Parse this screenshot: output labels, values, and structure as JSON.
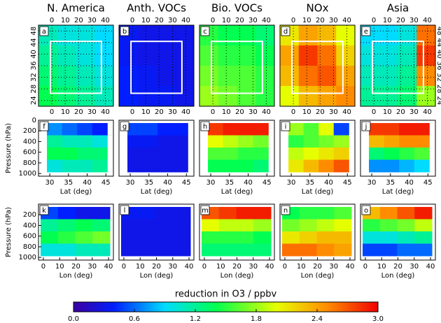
{
  "chart_data": [
    {
      "type": "map",
      "label": "a",
      "title": "N. America",
      "xlim": [
        -10,
        46
      ],
      "ylim": [
        22,
        50
      ],
      "xticks": [
        0,
        10,
        20,
        30,
        40
      ],
      "yticks": [
        24,
        28,
        32,
        36,
        40,
        44,
        48
      ],
      "values": [
        [
          1.1,
          1.0,
          1.0,
          0.9
        ],
        [
          1.2,
          1.1,
          1.0,
          0.9
        ],
        [
          1.3,
          1.2,
          1.1,
          1.0
        ],
        [
          1.4,
          1.3,
          1.2,
          1.1
        ]
      ]
    },
    {
      "type": "map",
      "label": "b",
      "title": "Anth. VOCs",
      "xlim": [
        -10,
        46
      ],
      "ylim": [
        22,
        50
      ],
      "xticks": [
        0,
        10,
        20,
        30,
        40
      ],
      "values": [
        [
          0.35,
          0.3,
          0.3,
          0.3
        ],
        [
          0.35,
          0.3,
          0.3,
          0.3
        ],
        [
          0.4,
          0.35,
          0.3,
          0.3
        ],
        [
          0.4,
          0.35,
          0.35,
          0.3
        ]
      ]
    },
    {
      "type": "map",
      "label": "c",
      "title": "Bio. VOCs",
      "xlim": [
        -10,
        46
      ],
      "ylim": [
        22,
        50
      ],
      "xticks": [
        0,
        10,
        20,
        30,
        40
      ],
      "values": [
        [
          1.5,
          1.4,
          1.4,
          1.3
        ],
        [
          1.6,
          1.5,
          1.5,
          1.4
        ],
        [
          1.7,
          1.6,
          1.6,
          1.5
        ],
        [
          1.8,
          1.7,
          1.6,
          1.5
        ]
      ]
    },
    {
      "type": "map",
      "label": "d",
      "title": "NOx",
      "xlim": [
        -10,
        46
      ],
      "ylim": [
        22,
        50
      ],
      "xticks": [
        0,
        10,
        20,
        30,
        40
      ],
      "values": [
        [
          2.1,
          2.4,
          2.3,
          2.0
        ],
        [
          2.4,
          2.8,
          2.6,
          2.2
        ],
        [
          2.3,
          2.6,
          2.7,
          2.4
        ],
        [
          2.0,
          2.3,
          2.4,
          2.5
        ]
      ]
    },
    {
      "type": "map",
      "label": "e",
      "title": "Asia",
      "xlim": [
        -10,
        46
      ],
      "ylim": [
        22,
        50
      ],
      "xticks": [
        0,
        10,
        20,
        30,
        40
      ],
      "yticks": [
        24,
        28,
        32,
        36,
        40,
        44,
        48
      ],
      "values": [
        [
          0.9,
          0.9,
          1.0,
          2.6
        ],
        [
          1.0,
          1.0,
          1.1,
          2.8
        ],
        [
          1.1,
          1.1,
          1.2,
          2.5
        ],
        [
          1.2,
          1.2,
          1.3,
          1.8
        ]
      ]
    },
    {
      "type": "section",
      "label": "f",
      "xlim": [
        27,
        47
      ],
      "ylim": [
        1050,
        0
      ],
      "xticks": [
        30,
        35,
        40,
        45
      ],
      "yticks": [
        0,
        200,
        400,
        600,
        800,
        1000
      ],
      "xlabel": "Lat (deg)",
      "ylabel": "Pressure (hPa)",
      "values": [
        [
          0.7,
          0.6,
          0.5,
          0.4
        ],
        [
          1.2,
          1.1,
          1.1,
          1.0
        ],
        [
          1.4,
          1.4,
          1.3,
          1.3
        ],
        [
          1.0,
          1.1,
          1.1,
          1.2
        ]
      ]
    },
    {
      "type": "section",
      "label": "g",
      "xlim": [
        27,
        47
      ],
      "ylim": [
        1050,
        0
      ],
      "xticks": [
        30,
        35,
        40,
        45
      ],
      "xlabel": "Lat (deg)",
      "values": [
        [
          0.5,
          0.5,
          0.4,
          0.4
        ],
        [
          0.35,
          0.35,
          0.3,
          0.3
        ],
        [
          0.3,
          0.3,
          0.3,
          0.3
        ],
        [
          0.3,
          0.3,
          0.3,
          0.3
        ]
      ]
    },
    {
      "type": "section",
      "label": "h",
      "xlim": [
        27,
        47
      ],
      "ylim": [
        1050,
        0
      ],
      "xticks": [
        30,
        35,
        40,
        45
      ],
      "xlabel": "Lat (deg)",
      "values": [
        [
          2.8,
          2.9,
          2.9,
          2.9
        ],
        [
          2.0,
          1.9,
          1.8,
          1.7
        ],
        [
          1.6,
          1.6,
          1.5,
          1.5
        ],
        [
          1.4,
          1.4,
          1.4,
          1.3
        ]
      ]
    },
    {
      "type": "section",
      "label": "i",
      "xlim": [
        27,
        47
      ],
      "ylim": [
        1050,
        0
      ],
      "xticks": [
        30,
        35,
        40,
        45
      ],
      "xlabel": "Lat (deg)",
      "values": [
        [
          1.8,
          1.6,
          2.0,
          0.5
        ],
        [
          1.5,
          1.6,
          1.7,
          1.8
        ],
        [
          1.9,
          2.0,
          2.1,
          2.2
        ],
        [
          2.1,
          2.3,
          2.5,
          2.7
        ]
      ]
    },
    {
      "type": "section",
      "label": "j",
      "xlim": [
        27,
        47
      ],
      "ylim": [
        1050,
        0
      ],
      "xticks": [
        30,
        35,
        40,
        45
      ],
      "xlabel": "Lat (deg)",
      "values": [
        [
          2.8,
          2.8,
          2.9,
          2.9
        ],
        [
          2.3,
          2.4,
          2.5,
          2.5
        ],
        [
          1.3,
          1.4,
          1.5,
          1.6
        ],
        [
          0.7,
          0.7,
          0.8,
          0.9
        ]
      ]
    },
    {
      "type": "section",
      "label": "k",
      "xlim": [
        -3,
        43
      ],
      "ylim": [
        1050,
        0
      ],
      "xticks": [
        0,
        10,
        20,
        30,
        40
      ],
      "yticks": [
        200,
        400,
        600,
        800,
        1000
      ],
      "xlabel": "Lon (deg)",
      "ylabel": "Pressure (hPa)",
      "values": [
        [
          0.5,
          0.4,
          0.3,
          0.3
        ],
        [
          1.2,
          1.3,
          1.4,
          1.3
        ],
        [
          1.4,
          1.5,
          1.6,
          1.7
        ],
        [
          1.0,
          1.0,
          1.1,
          1.1
        ]
      ]
    },
    {
      "type": "section",
      "label": "l",
      "xlim": [
        -3,
        43
      ],
      "ylim": [
        1050,
        0
      ],
      "xticks": [
        0,
        10,
        20,
        30,
        40
      ],
      "xlabel": "Lon (deg)",
      "values": [
        [
          0.35,
          0.35,
          0.3,
          0.3
        ],
        [
          0.3,
          0.3,
          0.3,
          0.3
        ],
        [
          0.3,
          0.3,
          0.3,
          0.3
        ],
        [
          0.3,
          0.3,
          0.3,
          0.3
        ]
      ]
    },
    {
      "type": "section",
      "label": "m",
      "xlim": [
        -3,
        43
      ],
      "ylim": [
        1050,
        0
      ],
      "xticks": [
        0,
        10,
        20,
        30,
        40
      ],
      "xlabel": "Lon (deg)",
      "values": [
        [
          2.7,
          2.8,
          2.9,
          2.9
        ],
        [
          2.0,
          1.9,
          1.9,
          1.8
        ],
        [
          1.5,
          1.5,
          1.5,
          1.4
        ],
        [
          1.3,
          1.3,
          1.3,
          1.3
        ]
      ]
    },
    {
      "type": "section",
      "label": "n",
      "xlim": [
        -3,
        43
      ],
      "ylim": [
        1050,
        0
      ],
      "xticks": [
        0,
        10,
        20,
        30,
        40
      ],
      "xlabel": "Lon (deg)",
      "values": [
        [
          1.4,
          1.5,
          1.5,
          1.6
        ],
        [
          1.7,
          1.8,
          1.9,
          2.0
        ],
        [
          2.1,
          2.2,
          2.3,
          2.3
        ],
        [
          2.6,
          2.6,
          2.5,
          2.4
        ]
      ]
    },
    {
      "type": "section",
      "label": "o",
      "xlim": [
        -3,
        43
      ],
      "ylim": [
        1050,
        0
      ],
      "xticks": [
        0,
        10,
        20,
        30,
        40
      ],
      "xlabel": "Lon (deg)",
      "values": [
        [
          2.3,
          2.5,
          2.7,
          2.9
        ],
        [
          1.5,
          1.6,
          1.7,
          1.9
        ],
        [
          1.0,
          1.0,
          1.1,
          1.2
        ],
        [
          0.5,
          0.5,
          0.6,
          0.6
        ]
      ]
    },
    {
      "type": "colorbar",
      "title": "reduction in O3 / ppbv",
      "xlim": [
        0,
        3
      ],
      "xticks": [
        {
          "value": 0,
          "label": "0.0"
        },
        {
          "value": 0.6,
          "label": "0.6"
        },
        {
          "value": 1.2,
          "label": "1.2"
        },
        {
          "value": 1.8,
          "label": "1.8"
        },
        {
          "value": 2.4,
          "label": "2.4"
        },
        {
          "value": 3,
          "label": "3.0"
        }
      ]
    }
  ]
}
